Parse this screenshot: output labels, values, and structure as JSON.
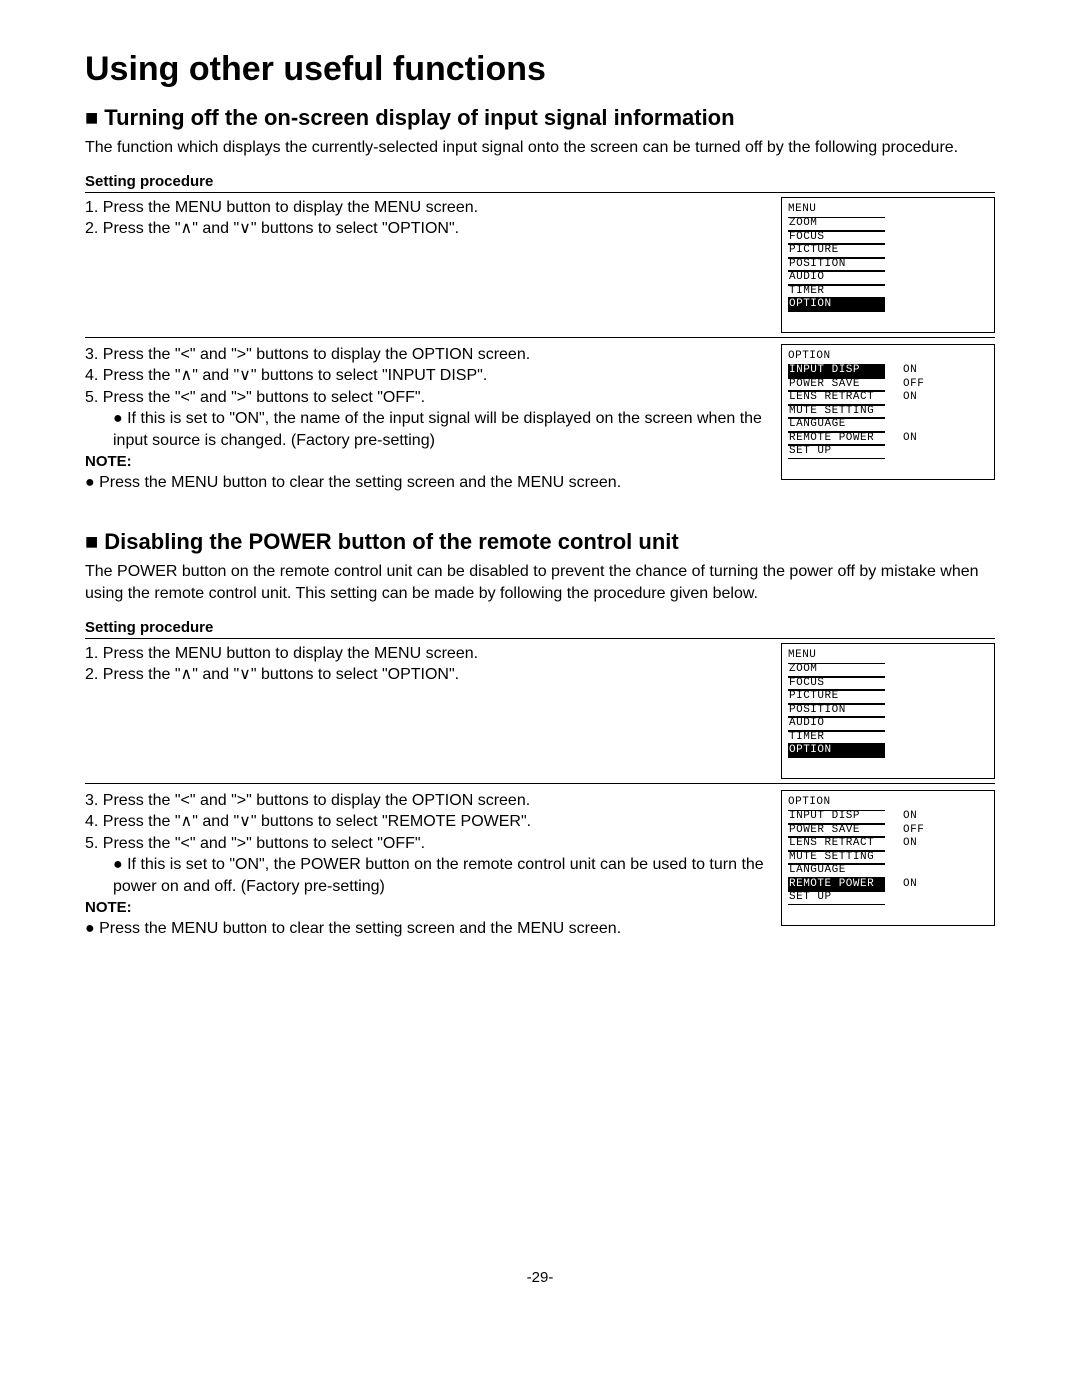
{
  "page_title": "Using other useful functions",
  "page_number": "-29-",
  "section1": {
    "heading": "Turning off the on-screen display of input signal information",
    "intro": "The function which displays the currently-selected input signal onto the screen can be turned off by the following procedure.",
    "proc_label": "Setting procedure",
    "steps_a": {
      "s1": "1. Press the MENU button to display the MENU screen.",
      "s2": "2. Press the \"∧\" and \"∨\" buttons to select \"OPTION\"."
    },
    "steps_b": {
      "s3": "3. Press the \"<\" and \">\" buttons to display the OPTION screen.",
      "s4": "4. Press the \"∧\" and \"∨\" buttons to select \"INPUT DISP\".",
      "s5": "5. Press the \"<\" and \">\" buttons to select \"OFF\".",
      "bullet": "● If this is set to \"ON\", the name of the input signal will be displayed on the screen when the input source is changed. (Factory pre-setting)",
      "note_label": "NOTE:",
      "note": "● Press the MENU button to clear the setting screen and the MENU screen."
    }
  },
  "section2": {
    "heading": "Disabling the POWER button of the remote control unit",
    "intro": "The POWER button on the remote control unit can be disabled to prevent the chance of turning the power off by mistake when using the remote control unit. This setting can be made by following the procedure given below.",
    "proc_label": "Setting procedure",
    "steps_a": {
      "s1": "1. Press the MENU button to display the MENU screen.",
      "s2": "2. Press the \"∧\" and \"∨\" buttons to select \"OPTION\"."
    },
    "steps_b": {
      "s3": "3. Press the \"<\" and \">\" buttons to display the OPTION screen.",
      "s4": "4. Press the \"∧\" and \"∨\" buttons to select \"REMOTE POWER\".",
      "s5": "5. Press the \"<\" and \">\" buttons to select \"OFF\".",
      "bullet": "● If this is set to \"ON\", the POWER button on the remote control unit can be used to turn the power on and off. (Factory pre-setting)",
      "note_label": "NOTE:",
      "note": "● Press the MENU button to clear the setting screen and the MENU screen."
    }
  },
  "menu_osd": {
    "title": "MENU",
    "items": [
      "ZOOM",
      "FOCUS",
      "PICTURE",
      "POSITION",
      "AUDIO",
      "TIMER",
      "OPTION"
    ],
    "selected": "OPTION"
  },
  "option_osd_1": {
    "title": "OPTION",
    "rows": [
      {
        "label": "INPUT DISP",
        "val": "ON",
        "sel": true
      },
      {
        "label": "POWER SAVE",
        "val": "OFF",
        "sel": false
      },
      {
        "label": "LENS RETRACT",
        "val": "ON",
        "sel": false
      },
      {
        "label": "MUTE SETTING",
        "val": "",
        "sel": false
      },
      {
        "label": "LANGUAGE",
        "val": "",
        "sel": false
      },
      {
        "label": "REMOTE POWER",
        "val": "ON",
        "sel": false
      },
      {
        "label": "SET UP",
        "val": "",
        "sel": false
      }
    ]
  },
  "option_osd_2": {
    "title": "OPTION",
    "rows": [
      {
        "label": "INPUT DISP",
        "val": "ON",
        "sel": false
      },
      {
        "label": "POWER SAVE",
        "val": "OFF",
        "sel": false
      },
      {
        "label": "LENS RETRACT",
        "val": "ON",
        "sel": false
      },
      {
        "label": "MUTE SETTING",
        "val": "",
        "sel": false
      },
      {
        "label": "LANGUAGE",
        "val": "",
        "sel": false
      },
      {
        "label": "REMOTE POWER",
        "val": "ON",
        "sel": true
      },
      {
        "label": "SET UP",
        "val": "",
        "sel": false
      }
    ]
  }
}
